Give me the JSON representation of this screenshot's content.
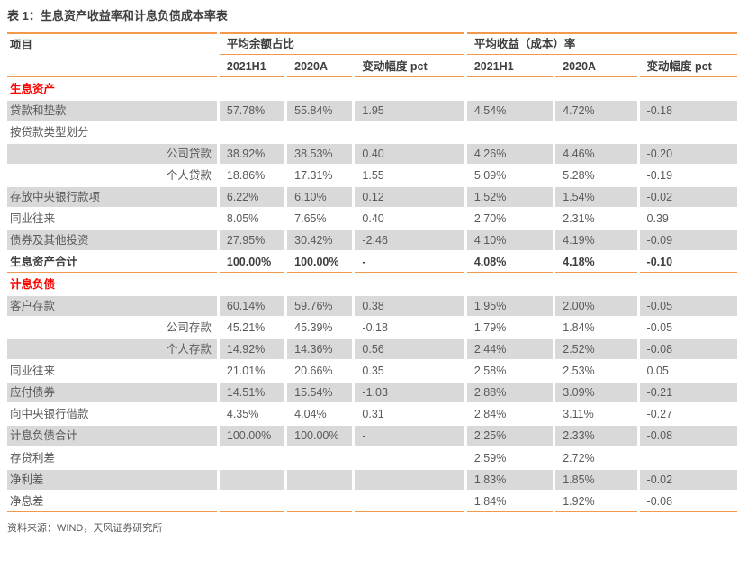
{
  "title": "表 1：生息资产收益率和计息负债成本率表",
  "source_note": "资料来源：WIND，天风证券研究所",
  "colors": {
    "accent_orange": "#F2994E",
    "section_red": "#FE0000",
    "row_shade_gray": "#D9D9D9",
    "body_text": "#595959",
    "heading_text": "#3F3F3F"
  },
  "table": {
    "item_header": "项目",
    "group_headers": [
      "平均余额占比",
      "平均收益（成本）率"
    ],
    "subheaders": [
      "2021H1",
      "2020A",
      "变动幅度 pct",
      "2021H1",
      "2020A",
      "变动幅度 pct"
    ],
    "rows": [
      {
        "label": "生息资产",
        "section": true,
        "indent": false,
        "shaded": false,
        "bold": false,
        "rule": false,
        "values": [
          "",
          "",
          "",
          "",
          "",
          ""
        ]
      },
      {
        "label": "贷款和垫款",
        "section": false,
        "indent": false,
        "shaded": true,
        "bold": false,
        "rule": false,
        "values": [
          "57.78%",
          "55.84%",
          "1.95",
          "4.54%",
          "4.72%",
          "-0.18"
        ]
      },
      {
        "label": "按贷款类型划分",
        "section": false,
        "indent": false,
        "shaded": false,
        "bold": false,
        "rule": false,
        "values": [
          "",
          "",
          "",
          "",
          "",
          ""
        ]
      },
      {
        "label": "公司贷款",
        "section": false,
        "indent": true,
        "shaded": true,
        "bold": false,
        "rule": false,
        "values": [
          "38.92%",
          "38.53%",
          "0.40",
          "4.26%",
          "4.46%",
          "-0.20"
        ]
      },
      {
        "label": "个人贷款",
        "section": false,
        "indent": true,
        "shaded": false,
        "bold": false,
        "rule": false,
        "values": [
          "18.86%",
          "17.31%",
          "1.55",
          "5.09%",
          "5.28%",
          "-0.19"
        ]
      },
      {
        "label": "存放中央银行款项",
        "section": false,
        "indent": false,
        "shaded": true,
        "bold": false,
        "rule": false,
        "values": [
          "6.22%",
          "6.10%",
          "0.12",
          "1.52%",
          "1.54%",
          "-0.02"
        ]
      },
      {
        "label": "同业往来",
        "section": false,
        "indent": false,
        "shaded": false,
        "bold": false,
        "rule": false,
        "values": [
          "8.05%",
          "7.65%",
          "0.40",
          "2.70%",
          "2.31%",
          "0.39"
        ]
      },
      {
        "label": "债券及其他投资",
        "section": false,
        "indent": false,
        "shaded": true,
        "bold": false,
        "rule": false,
        "values": [
          "27.95%",
          "30.42%",
          "-2.46",
          "4.10%",
          "4.19%",
          "-0.09"
        ]
      },
      {
        "label": "生息资产合计",
        "section": false,
        "indent": false,
        "shaded": false,
        "bold": true,
        "rule": true,
        "values": [
          "100.00%",
          "100.00%",
          "-",
          "4.08%",
          "4.18%",
          "-0.10"
        ]
      },
      {
        "label": "计息负债",
        "section": true,
        "indent": false,
        "shaded": false,
        "bold": false,
        "rule": false,
        "values": [
          "",
          "",
          "",
          "",
          "",
          ""
        ]
      },
      {
        "label": "客户存款",
        "section": false,
        "indent": false,
        "shaded": true,
        "bold": false,
        "rule": false,
        "values": [
          "60.14%",
          "59.76%",
          "0.38",
          "1.95%",
          "2.00%",
          "-0.05"
        ]
      },
      {
        "label": "公司存款",
        "section": false,
        "indent": true,
        "shaded": false,
        "bold": false,
        "rule": false,
        "values": [
          "45.21%",
          "45.39%",
          "-0.18",
          "1.79%",
          "1.84%",
          "-0.05"
        ]
      },
      {
        "label": "个人存款",
        "section": false,
        "indent": true,
        "shaded": true,
        "bold": false,
        "rule": false,
        "values": [
          "14.92%",
          "14.36%",
          "0.56",
          "2.44%",
          "2.52%",
          "-0.08"
        ]
      },
      {
        "label": "同业往来",
        "section": false,
        "indent": false,
        "shaded": false,
        "bold": false,
        "rule": false,
        "values": [
          "21.01%",
          "20.66%",
          "0.35",
          "2.58%",
          "2.53%",
          "0.05"
        ]
      },
      {
        "label": "应付债券",
        "section": false,
        "indent": false,
        "shaded": true,
        "bold": false,
        "rule": false,
        "values": [
          "14.51%",
          "15.54%",
          "-1.03",
          "2.88%",
          "3.09%",
          "-0.21"
        ]
      },
      {
        "label": "向中央银行借款",
        "section": false,
        "indent": false,
        "shaded": false,
        "bold": false,
        "rule": false,
        "values": [
          "4.35%",
          "4.04%",
          "0.31",
          "2.84%",
          "3.11%",
          "-0.27"
        ]
      },
      {
        "label": "计息负债合计",
        "section": false,
        "indent": false,
        "shaded": true,
        "bold": false,
        "rule": true,
        "values": [
          "100.00%",
          "100.00%",
          "-",
          "2.25%",
          "2.33%",
          "-0.08"
        ]
      },
      {
        "label": "存贷利差",
        "section": false,
        "indent": false,
        "shaded": false,
        "bold": false,
        "rule": false,
        "values": [
          "",
          "",
          "",
          "2.59%",
          "2.72%",
          ""
        ]
      },
      {
        "label": "净利差",
        "section": false,
        "indent": false,
        "shaded": true,
        "bold": false,
        "rule": false,
        "values": [
          "",
          "",
          "",
          "1.83%",
          "1.85%",
          "-0.02"
        ]
      },
      {
        "label": "净息差",
        "section": false,
        "indent": false,
        "shaded": false,
        "bold": false,
        "rule": true,
        "values": [
          "",
          "",
          "",
          "1.84%",
          "1.92%",
          "-0.08"
        ]
      }
    ]
  }
}
